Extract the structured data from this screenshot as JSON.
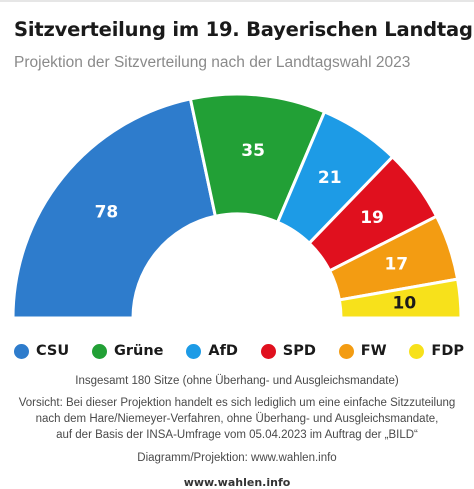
{
  "header": {
    "title": "Sitzverteilung im 19. Bayerischen Landtag",
    "subtitle": "Projektion der Sitzverteilung nach der Landtagswahl 2023"
  },
  "chart_data": {
    "type": "pie",
    "variant": "semicircle-parliament",
    "categories": [
      "CSU",
      "Grüne",
      "AfD",
      "SPD",
      "FW",
      "FDP"
    ],
    "values": [
      78,
      35,
      21,
      19,
      17,
      10
    ],
    "colors": [
      "#2e7ccc",
      "#22a036",
      "#1d9be6",
      "#e0101e",
      "#f39c12",
      "#f7e11b"
    ],
    "total": 180,
    "legend_position": "bottom"
  },
  "legend": [
    {
      "label": "CSU",
      "color": "#2e7ccc"
    },
    {
      "label": "Grüne",
      "color": "#22a036"
    },
    {
      "label": "AfD",
      "color": "#1d9be6"
    },
    {
      "label": "SPD",
      "color": "#e0101e"
    },
    {
      "label": "FW",
      "color": "#f39c12"
    },
    {
      "label": "FDP",
      "color": "#f7e11b"
    }
  ],
  "notes": {
    "total": "Insgesamt 180 Sitze (ohne Überhang- und Ausgleichsmandate)",
    "disclaimer_line1": "Vorsicht: Bei dieser Projektion handelt es sich lediglich um eine einfache Sitzzuteilung",
    "disclaimer_line2": "nach dem Hare/Niemeyer-Verfahren, ohne Überhang- und Ausgleichsmandate,",
    "disclaimer_line3": "auf der Basis der INSA-Umfrage vom 05.04.2023 im Auftrag der „BILD“",
    "credit": "Diagramm/Projektion: www.wahlen.info"
  },
  "footer": {
    "site": "www.wahlen.info"
  }
}
